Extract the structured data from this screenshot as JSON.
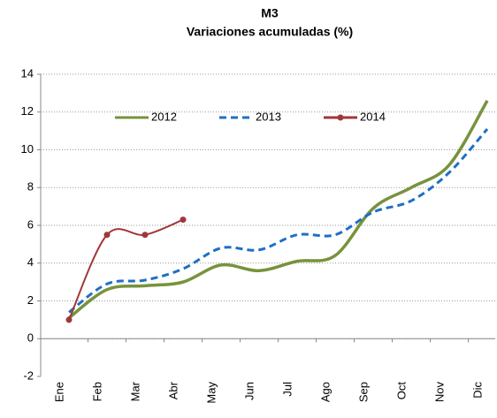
{
  "chart_data": {
    "type": "line",
    "title": "M3",
    "subtitle": "Variaciones acumuladas (%)",
    "categories": [
      "Ene",
      "Feb",
      "Mar",
      "Abr",
      "May",
      "Jun",
      "Jul",
      "Ago",
      "Sep",
      "Oct",
      "Nov",
      "Dic"
    ],
    "series": [
      {
        "name": "2012",
        "color": "#77933c",
        "dashed": false,
        "marker": false,
        "values": [
          1.1,
          2.6,
          2.8,
          3.0,
          3.9,
          3.6,
          4.1,
          4.4,
          6.9,
          8.0,
          9.2,
          12.6
        ]
      },
      {
        "name": "2013",
        "color": "#1f6fc5",
        "dashed": true,
        "marker": false,
        "values": [
          1.4,
          2.9,
          3.1,
          3.7,
          4.8,
          4.7,
          5.5,
          5.5,
          6.7,
          7.3,
          8.8,
          11.1
        ]
      },
      {
        "name": "2014",
        "color": "#a0373a",
        "dashed": false,
        "marker": true,
        "values": [
          1.0,
          5.5,
          5.5,
          6.3,
          null,
          null,
          null,
          null,
          null,
          null,
          null,
          null
        ]
      }
    ],
    "ylim": [
      -2,
      14
    ],
    "yticks": [
      -2,
      0,
      2,
      4,
      6,
      8,
      10,
      12,
      14
    ],
    "grid": true,
    "legend": "top"
  }
}
